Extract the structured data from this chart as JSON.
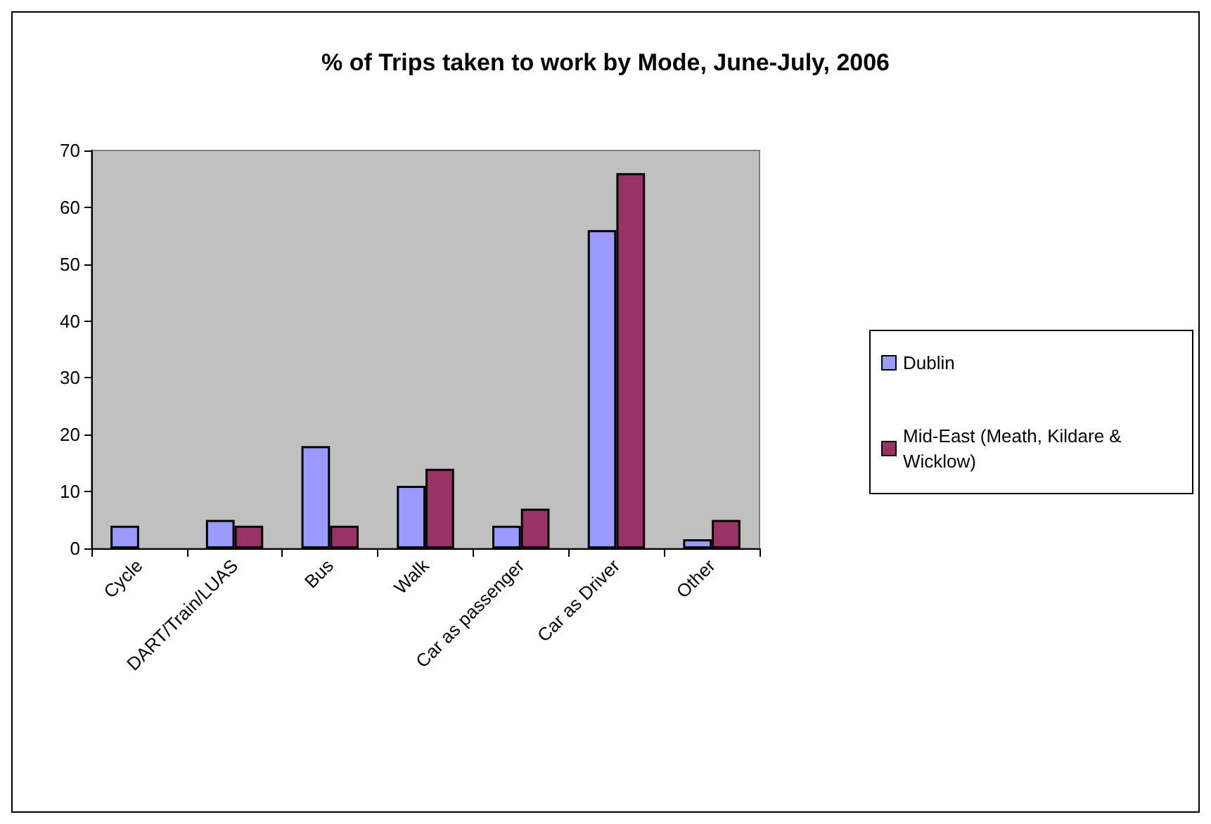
{
  "chart_data": {
    "type": "bar",
    "title": "% of Trips taken to work by Mode, June-July, 2006",
    "categories": [
      "Cycle",
      "DART/Train/LUAS",
      "Bus",
      "Walk",
      "Car as passenger",
      "Car as Driver",
      "Other"
    ],
    "series": [
      {
        "name": "Dublin",
        "color": "#9999ff",
        "values": [
          4,
          5,
          18,
          11,
          4,
          56,
          1.6
        ]
      },
      {
        "name": "Mid-East (Meath, Kildare & Wicklow)",
        "color": "#993366",
        "values": [
          null,
          4,
          4,
          14,
          7,
          66,
          5
        ]
      }
    ],
    "ylim": [
      0,
      70
    ],
    "yticks": [
      0,
      10,
      20,
      30,
      40,
      50,
      60,
      70
    ],
    "grid": false,
    "legend": "right"
  }
}
